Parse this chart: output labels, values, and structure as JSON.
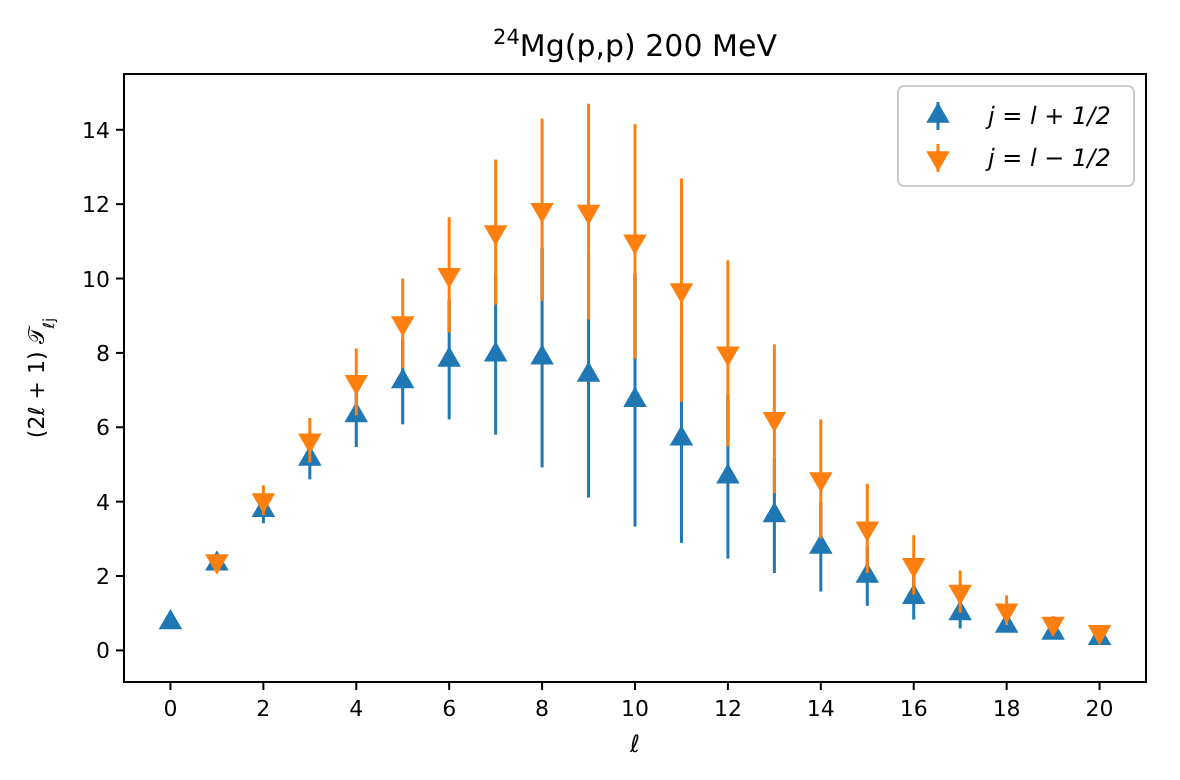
{
  "chart_data": {
    "type": "scatter",
    "title": "$^{24}$Mg(p,p) 200 MeV",
    "xlabel": "ℓ",
    "ylabel": "(2ℓ + 1) 𝒯$_{ℓj}$",
    "x": [
      0,
      1,
      2,
      3,
      4,
      5,
      6,
      7,
      8,
      9,
      10,
      11,
      12,
      13,
      14,
      15,
      16,
      17,
      18,
      19,
      20
    ],
    "xlim": [
      -1,
      21
    ],
    "xticks": [
      0,
      2,
      4,
      6,
      8,
      10,
      12,
      14,
      16,
      18,
      20
    ],
    "ylim": [
      -0.85,
      15.5
    ],
    "yticks": [
      0,
      2,
      4,
      6,
      8,
      10,
      12,
      14
    ],
    "grid": false,
    "legend": "top right",
    "series": [
      {
        "name": "j = l + 1/2",
        "color": "#1f77b4",
        "marker": "triangle",
        "values": [
          0.75,
          2.33,
          3.77,
          5.15,
          6.32,
          7.23,
          7.81,
          7.95,
          7.87,
          7.41,
          6.73,
          5.69,
          4.67,
          3.63,
          2.78,
          2.0,
          1.43,
          0.99,
          0.66,
          0.47,
          0.33
        ],
        "errors": [
          0,
          0.1,
          0.35,
          0.55,
          0.85,
          1.15,
          1.6,
          2.15,
          2.95,
          3.3,
          3.4,
          2.8,
          2.2,
          1.55,
          1.2,
          0.8,
          0.6,
          0.4,
          0.15,
          0.1,
          0.05
        ]
      },
      {
        "name": "j = l − 1/2",
        "color": "#ff7f0e",
        "marker": "triangle_down",
        "values": [
          null,
          2.4,
          4.04,
          5.65,
          7.22,
          8.8,
          10.1,
          11.25,
          11.85,
          11.8,
          11.0,
          9.69,
          7.99,
          6.23,
          4.61,
          3.28,
          2.3,
          1.58,
          1.08,
          0.72,
          0.5
        ],
        "errors": [
          null,
          null,
          0.4,
          0.6,
          0.9,
          1.2,
          1.55,
          1.95,
          2.45,
          2.9,
          3.15,
          3.0,
          2.5,
          2.0,
          1.6,
          1.2,
          0.8,
          0.57,
          0.4,
          0.2,
          0.1
        ]
      }
    ]
  }
}
